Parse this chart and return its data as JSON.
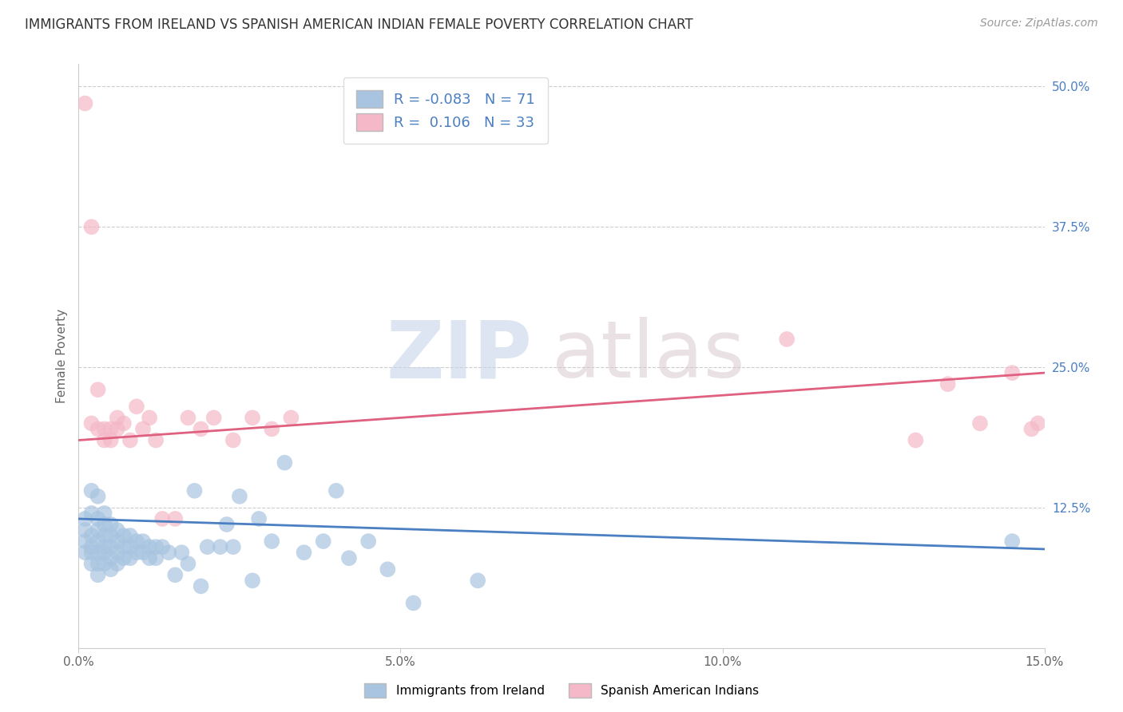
{
  "title": "IMMIGRANTS FROM IRELAND VS SPANISH AMERICAN INDIAN FEMALE POVERTY CORRELATION CHART",
  "source": "Source: ZipAtlas.com",
  "ylabel": "Female Poverty",
  "xlim": [
    0.0,
    0.15
  ],
  "ylim": [
    0.0,
    0.52
  ],
  "xticks": [
    0.0,
    0.05,
    0.1,
    0.15
  ],
  "xtick_labels": [
    "0.0%",
    "5.0%",
    "10.0%",
    "15.0%"
  ],
  "ytick_right_vals": [
    0.125,
    0.25,
    0.375,
    0.5
  ],
  "ytick_right_labels": [
    "12.5%",
    "25.0%",
    "37.5%",
    "50.0%"
  ],
  "blue_color": "#a8c4e0",
  "pink_color": "#f4b8c8",
  "blue_line_color": "#4a7fc1",
  "pink_line_color": "#e06080",
  "R_blue": -0.083,
  "N_blue": 71,
  "R_pink": 0.106,
  "N_pink": 33,
  "legend_label_blue": "Immigrants from Ireland",
  "legend_label_pink": "Spanish American Indians",
  "watermark_zip": "ZIP",
  "watermark_atlas": "atlas",
  "background_color": "#ffffff",
  "grid_color": "#cccccc",
  "blue_trend_x0": 0.0,
  "blue_trend_y0": 0.115,
  "blue_trend_x1": 0.15,
  "blue_trend_y1": 0.088,
  "pink_trend_x0": 0.0,
  "pink_trend_y0": 0.185,
  "pink_trend_x1": 0.15,
  "pink_trend_y1": 0.245,
  "blue_scatter_x": [
    0.001,
    0.001,
    0.001,
    0.001,
    0.002,
    0.002,
    0.002,
    0.002,
    0.002,
    0.002,
    0.003,
    0.003,
    0.003,
    0.003,
    0.003,
    0.003,
    0.003,
    0.004,
    0.004,
    0.004,
    0.004,
    0.004,
    0.004,
    0.005,
    0.005,
    0.005,
    0.005,
    0.005,
    0.006,
    0.006,
    0.006,
    0.006,
    0.007,
    0.007,
    0.007,
    0.008,
    0.008,
    0.008,
    0.009,
    0.009,
    0.01,
    0.01,
    0.011,
    0.011,
    0.012,
    0.012,
    0.013,
    0.014,
    0.015,
    0.016,
    0.017,
    0.018,
    0.019,
    0.02,
    0.022,
    0.023,
    0.024,
    0.025,
    0.027,
    0.028,
    0.03,
    0.032,
    0.035,
    0.038,
    0.04,
    0.042,
    0.045,
    0.048,
    0.052,
    0.062,
    0.145
  ],
  "blue_scatter_y": [
    0.115,
    0.105,
    0.095,
    0.085,
    0.14,
    0.12,
    0.1,
    0.09,
    0.085,
    0.075,
    0.135,
    0.115,
    0.105,
    0.095,
    0.085,
    0.075,
    0.065,
    0.12,
    0.11,
    0.1,
    0.09,
    0.085,
    0.075,
    0.11,
    0.1,
    0.09,
    0.08,
    0.07,
    0.105,
    0.095,
    0.085,
    0.075,
    0.1,
    0.09,
    0.08,
    0.1,
    0.09,
    0.08,
    0.095,
    0.085,
    0.095,
    0.085,
    0.09,
    0.08,
    0.09,
    0.08,
    0.09,
    0.085,
    0.065,
    0.085,
    0.075,
    0.14,
    0.055,
    0.09,
    0.09,
    0.11,
    0.09,
    0.135,
    0.06,
    0.115,
    0.095,
    0.165,
    0.085,
    0.095,
    0.14,
    0.08,
    0.095,
    0.07,
    0.04,
    0.06,
    0.095
  ],
  "pink_scatter_x": [
    0.001,
    0.002,
    0.002,
    0.003,
    0.003,
    0.004,
    0.004,
    0.005,
    0.005,
    0.006,
    0.006,
    0.007,
    0.008,
    0.009,
    0.01,
    0.011,
    0.012,
    0.013,
    0.015,
    0.017,
    0.019,
    0.021,
    0.024,
    0.027,
    0.03,
    0.033,
    0.11,
    0.13,
    0.135,
    0.14,
    0.145,
    0.148,
    0.149
  ],
  "pink_scatter_y": [
    0.485,
    0.2,
    0.375,
    0.23,
    0.195,
    0.185,
    0.195,
    0.185,
    0.195,
    0.205,
    0.195,
    0.2,
    0.185,
    0.215,
    0.195,
    0.205,
    0.185,
    0.115,
    0.115,
    0.205,
    0.195,
    0.205,
    0.185,
    0.205,
    0.195,
    0.205,
    0.275,
    0.185,
    0.235,
    0.2,
    0.245,
    0.195,
    0.2
  ]
}
